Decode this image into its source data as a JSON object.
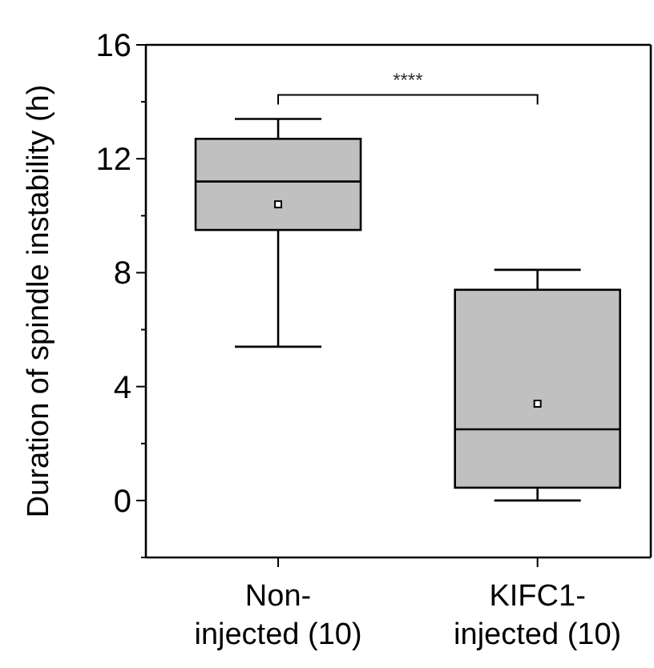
{
  "chart_data": {
    "type": "box",
    "ylabel": "Duration of spindle instability (h)",
    "categories": [
      "Non-\ninjected (10)",
      "KIFC1-\ninjected (10)"
    ],
    "boxes": [
      {
        "low": 5.4,
        "q1": 9.5,
        "median": 11.2,
        "q3": 12.7,
        "high": 13.4,
        "mean": 10.4
      },
      {
        "low": 0,
        "q1": 0.45,
        "median": 2.5,
        "q3": 7.4,
        "high": 8.1,
        "mean": 3.4
      }
    ],
    "color": "#c0c0c0",
    "ylim": [
      -2,
      16
    ],
    "yticks": [
      {
        "value": -2,
        "label": null
      },
      0,
      {
        "value": 2,
        "label": null
      },
      4,
      {
        "value": 6,
        "label": null
      },
      8,
      {
        "value": 10,
        "label": null
      },
      12,
      {
        "value": 14,
        "label": null
      },
      16
    ],
    "annotations": [
      "****"
    ],
    "grid": false
  }
}
